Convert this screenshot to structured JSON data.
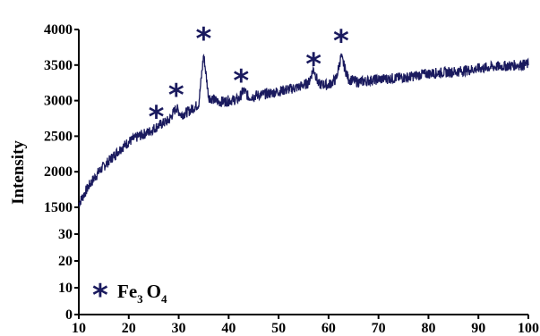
{
  "chart_data": {
    "type": "line",
    "title": "",
    "xlabel": "",
    "ylabel": "Intensity",
    "xlim": [
      10,
      100
    ],
    "x_ticks": [
      "10",
      "20",
      "30",
      "40",
      "50",
      "60",
      "70",
      "80",
      "90",
      "100"
    ],
    "y_ticks": [
      "0",
      "10",
      "20",
      "30",
      "1500",
      "2000",
      "2500",
      "3000",
      "3500",
      "4000"
    ],
    "y_axis_note": "broken axis: 0–40 in lower segment, 1500–4000 in upper segment",
    "line_color": "#1a1a5e",
    "series": [
      {
        "name": "",
        "x": [
          10,
          12,
          14,
          16,
          18,
          20,
          22,
          24,
          26,
          28,
          29.5,
          30.5,
          32,
          34,
          35,
          36,
          38,
          40,
          42,
          43,
          44,
          46,
          48,
          50,
          52,
          54,
          56,
          57,
          58,
          60,
          61.5,
          62.5,
          64,
          66,
          68,
          70,
          72,
          74,
          76,
          78,
          80,
          82,
          84,
          86,
          88,
          90,
          92,
          94,
          96,
          98,
          100
        ],
        "y": [
          1550,
          1800,
          2000,
          2150,
          2300,
          2420,
          2500,
          2560,
          2650,
          2720,
          2900,
          2800,
          2850,
          2950,
          3650,
          3050,
          2980,
          3000,
          3020,
          3150,
          3050,
          3080,
          3100,
          3130,
          3160,
          3190,
          3250,
          3450,
          3230,
          3220,
          3300,
          3620,
          3300,
          3260,
          3280,
          3300,
          3310,
          3320,
          3330,
          3360,
          3380,
          3390,
          3400,
          3410,
          3430,
          3450,
          3470,
          3480,
          3490,
          3500,
          3510
        ]
      }
    ],
    "peak_markers": [
      {
        "x": 25.5,
        "y": 2800
      },
      {
        "x": 29.5,
        "y": 3110
      },
      {
        "x": 35,
        "y": 3900
      },
      {
        "x": 42.5,
        "y": 3310
      },
      {
        "x": 57,
        "y": 3540
      },
      {
        "x": 62.5,
        "y": 3870
      }
    ],
    "legend": {
      "position": "bottom-left",
      "symbol": "*",
      "element1": "Fe",
      "sub1": "3",
      "element2": "O",
      "sub2": "4"
    }
  }
}
